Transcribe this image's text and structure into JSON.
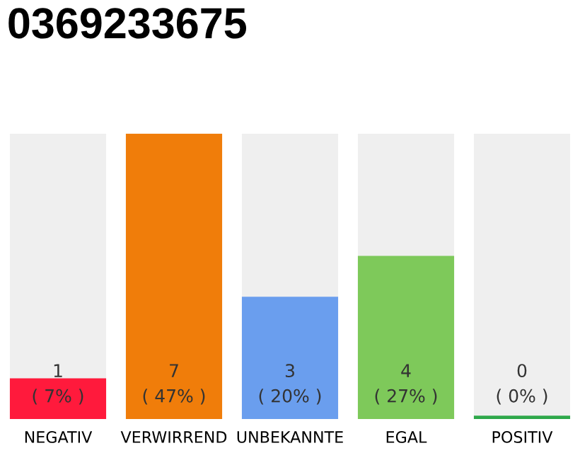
{
  "chart_data": {
    "type": "bar",
    "title": "0369233675",
    "categories": [
      "NEGATIV",
      "VERWIRREND",
      "UNBEKANNTE",
      "EGAL",
      "POSITIV"
    ],
    "values": [
      1,
      7,
      3,
      4,
      0
    ],
    "colors": [
      "#ff1a3c",
      "#f07d0a",
      "#6a9eee",
      "#7ec95a",
      "#2ea84a"
    ],
    "value_labels": [
      "1\n( 7% )",
      "7\n( 47% )",
      "3\n( 20% )",
      "4\n( 27% )",
      "0\n( 0% )"
    ],
    "grid": false,
    "legend": false
  }
}
